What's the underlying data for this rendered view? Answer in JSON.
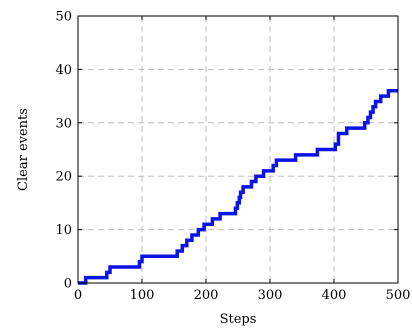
{
  "chart_data": {
    "type": "line",
    "title": "",
    "xlabel": "Steps",
    "ylabel": "Clear events",
    "xlim": [
      0,
      500
    ],
    "ylim": [
      0,
      50
    ],
    "xticks": [
      0,
      100,
      200,
      300,
      400,
      500
    ],
    "yticks": [
      0,
      10,
      20,
      30,
      40,
      50
    ],
    "grid": true,
    "line_color": "#0a14e6",
    "series": [
      {
        "style": "step",
        "x": [
          0,
          12,
          45,
          50,
          96,
          100,
          155,
          163,
          170,
          178,
          188,
          197,
          210,
          222,
          246,
          249,
          252,
          254,
          258,
          271,
          278,
          290,
          305,
          310,
          340,
          374,
          402,
          407,
          420,
          448,
          453,
          457,
          461,
          465,
          473,
          485,
          500
        ],
        "y": [
          0,
          1,
          2,
          3,
          4,
          5,
          6,
          7,
          8,
          9,
          10,
          11,
          12,
          13,
          14,
          15,
          16,
          17,
          18,
          19,
          20,
          21,
          22,
          23,
          24,
          25,
          26,
          28,
          29,
          30,
          31,
          32,
          33,
          34,
          35,
          36,
          36
        ]
      }
    ]
  }
}
